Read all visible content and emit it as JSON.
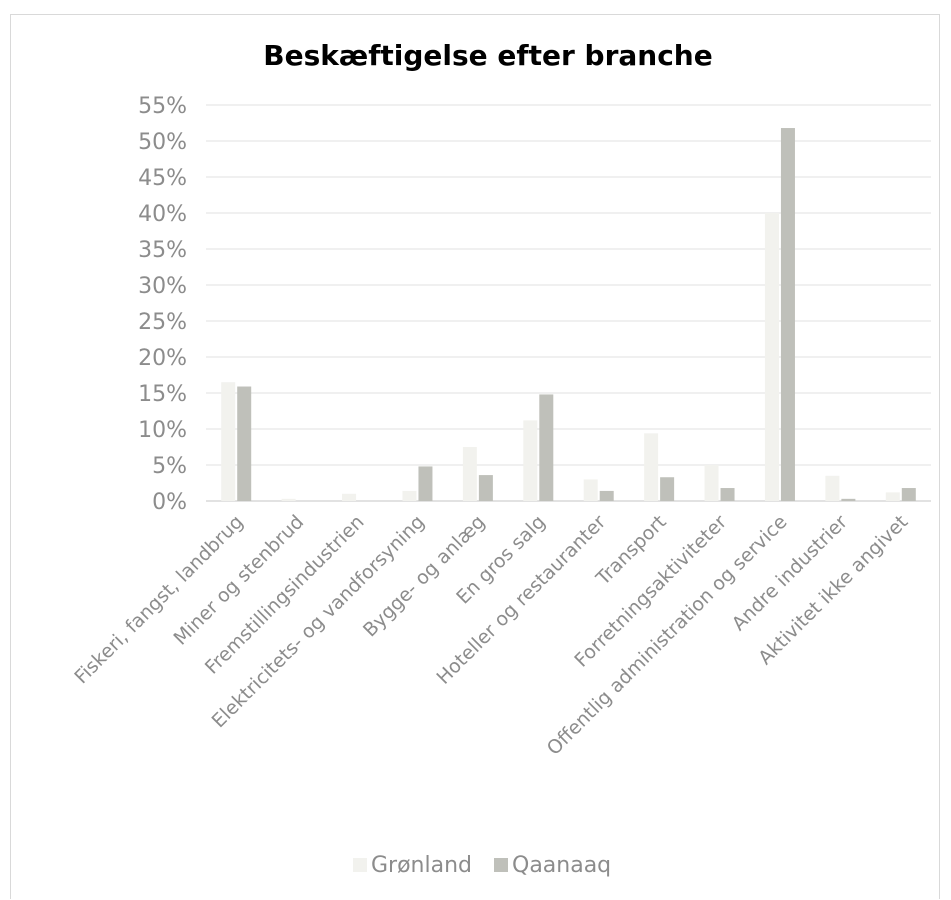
{
  "chart_data": {
    "type": "bar",
    "title": "Beskæftigelse efter branche",
    "categories": [
      "Fiskeri, fangst, landbrug",
      "Miner og stenbrud",
      "Fremstillingsindustrien",
      "Elektricitets- og vandforsyning",
      "Bygge- og anlæg",
      "En gros salg",
      "Hoteller og restauranter",
      "Transport",
      "Forretningsaktiviteter",
      "Offentlig administration og service",
      "Andre industrier",
      "Aktivitet ikke angivet"
    ],
    "series": [
      {
        "name": "Grønland",
        "color": "#f2f2ee",
        "values": [
          16.5,
          0.3,
          1.0,
          1.4,
          7.5,
          11.2,
          3.0,
          9.4,
          5.0,
          40.0,
          3.5,
          1.2
        ]
      },
      {
        "name": "Qaanaaq",
        "color": "#bfc0ba",
        "values": [
          15.9,
          0.0,
          0.0,
          4.8,
          3.6,
          14.8,
          1.4,
          3.3,
          1.8,
          51.8,
          0.3,
          1.8
        ]
      }
    ],
    "ylim": [
      0,
      55
    ],
    "yticks": [
      "0%",
      "5%",
      "10%",
      "15%",
      "20%",
      "25%",
      "30%",
      "35%",
      "40%",
      "45%",
      "50%",
      "55%"
    ],
    "ytick_values": [
      0,
      5,
      10,
      15,
      20,
      25,
      30,
      35,
      40,
      45,
      50,
      55
    ],
    "grid": true,
    "legend_position": "bottom"
  }
}
